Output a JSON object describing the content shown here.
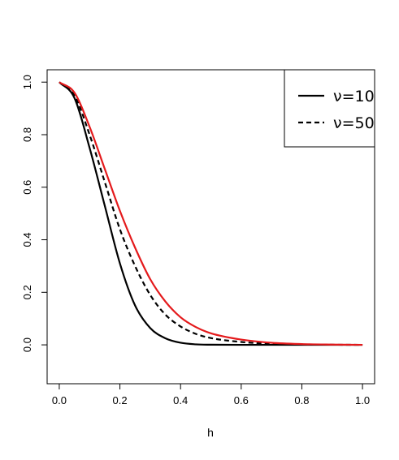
{
  "chart_data": {
    "type": "line",
    "xlabel": "h",
    "ylabel": "",
    "xlim": [
      -0.04,
      1.04
    ],
    "ylim": [
      -0.148,
      1.047
    ],
    "xticks": [
      0,
      0.2,
      0.4,
      0.6,
      0.8,
      1
    ],
    "xtick_labels": [
      "0.0",
      "0.2",
      "0.4",
      "0.6",
      "0.8",
      "1.0"
    ],
    "yticks": [
      0,
      0.2,
      0.4,
      0.6,
      0.8,
      1
    ],
    "ytick_labels": [
      "0.0",
      "0.2",
      "0.4",
      "0.6",
      "0.8",
      "1.0"
    ],
    "grid": false,
    "legend_position": "top-right",
    "series": [
      {
        "name": "ν=10",
        "color": "#000000",
        "dash": "solid",
        "x": [
          0,
          0.05,
          0.1,
          0.15,
          0.2,
          0.25,
          0.3,
          0.35,
          0.4,
          0.45,
          0.5,
          0.6,
          0.7,
          0.8,
          0.9,
          1
        ],
        "y": [
          1,
          0.94,
          0.75,
          0.53,
          0.31,
          0.15,
          0.064,
          0.025,
          0.008,
          0.002,
          0.0005,
          0,
          0,
          0,
          0,
          0
        ]
      },
      {
        "name": "ν=50",
        "color": "#000000",
        "dash": "dashed",
        "x": [
          0,
          0.05,
          0.1,
          0.15,
          0.2,
          0.25,
          0.3,
          0.35,
          0.4,
          0.45,
          0.5,
          0.6,
          0.7,
          0.8,
          0.9,
          1
        ],
        "y": [
          1,
          0.95,
          0.8,
          0.62,
          0.44,
          0.3,
          0.19,
          0.115,
          0.07,
          0.042,
          0.026,
          0.011,
          0.004,
          0.0015,
          0.0005,
          0
        ]
      },
      {
        "color": "#e41a1c",
        "dash": "solid",
        "x": [
          0,
          0.05,
          0.1,
          0.15,
          0.2,
          0.25,
          0.3,
          0.35,
          0.4,
          0.45,
          0.5,
          0.6,
          0.7,
          0.8,
          0.9,
          1
        ],
        "y": [
          1,
          0.96,
          0.83,
          0.67,
          0.51,
          0.37,
          0.25,
          0.165,
          0.105,
          0.068,
          0.044,
          0.02,
          0.008,
          0.003,
          0.001,
          0
        ]
      }
    ]
  }
}
